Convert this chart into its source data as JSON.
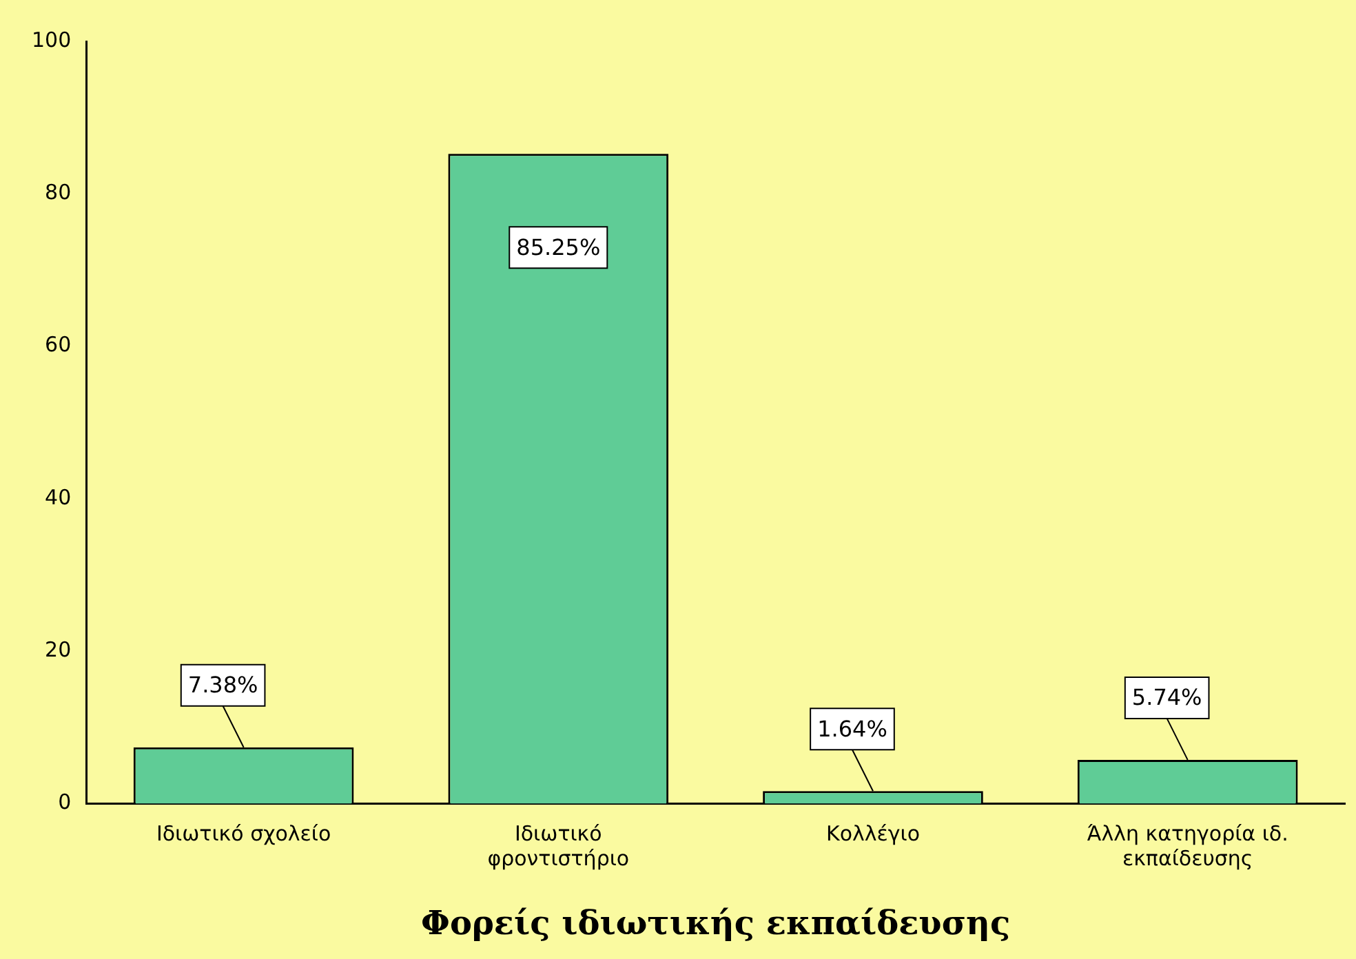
{
  "chart_data": {
    "type": "bar",
    "xlabel": "Φορείς ιδιωτικής εκπαίδευσης",
    "categories": [
      "Ιδιωτικό σχολείο",
      "Ιδιωτικό φροντιστήριο",
      "Κολλέγιο",
      "Άλλη κατηγορία ιδ. εκπαίδευσης"
    ],
    "values": [
      7.38,
      85.25,
      1.64,
      5.74
    ],
    "value_labels": [
      "7.38%",
      "85.25%",
      "1.64%",
      "5.74%"
    ],
    "color": "#5fcc96",
    "ylim": [
      0,
      100
    ],
    "yticks": [
      0,
      20,
      40,
      60,
      80,
      100
    ],
    "grid": false,
    "legend": false
  }
}
